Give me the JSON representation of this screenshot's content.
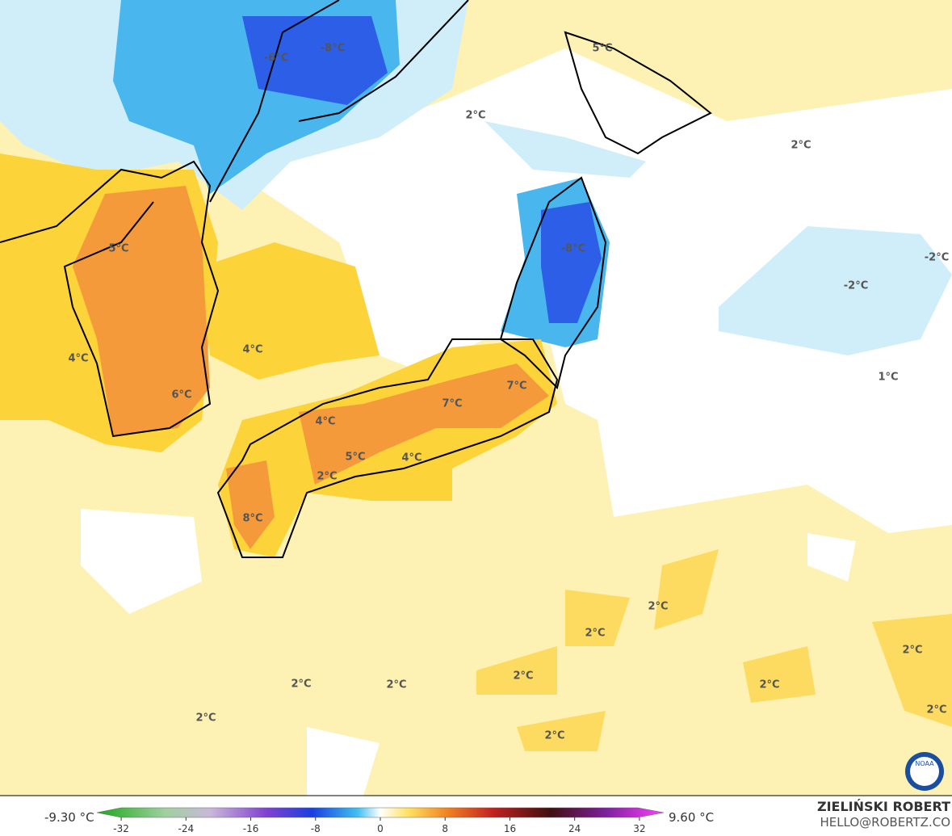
{
  "map": {
    "labels": [
      "-6°C",
      "-8°C",
      "5°C",
      "2°C",
      "2°C",
      "5°C",
      "-8°C",
      "-2°C",
      "-2°C",
      "4°C",
      "4°C",
      "1°C",
      "6°C",
      "7°C",
      "7°C",
      "4°C",
      "5°C",
      "4°C",
      "2°C",
      "8°C",
      "2°C",
      "2°C",
      "2°C",
      "2°C",
      "2°C",
      "2°C",
      "2°C",
      "2°C",
      "2°C",
      "2°C"
    ],
    "logo": "NOAA"
  },
  "colorbar": {
    "min_label": "-9.30 °C",
    "max_label": "9.60 °C",
    "range": [
      -35,
      35
    ],
    "ticks": [
      -32,
      -24,
      -16,
      -8,
      0,
      8,
      16,
      24,
      32
    ]
  },
  "credit": {
    "name": "ZIELIŃSKI ROBERT",
    "email": "HELLO@ROBERTZ.CO"
  }
}
